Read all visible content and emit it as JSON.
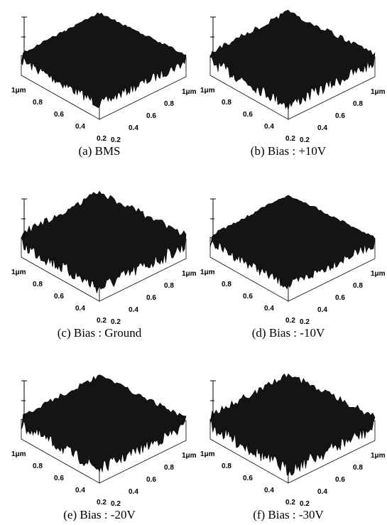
{
  "panels": [
    {
      "caption": "(a) BMS",
      "left_axis": [
        "1μm",
        "0.8",
        "0.6",
        "0.4",
        "0.2"
      ],
      "right_axis": [
        "0.2",
        "0.4",
        "0.6",
        "0.8",
        "1μm"
      ]
    },
    {
      "caption": "(b) Bias : +10V",
      "left_axis": [
        "1μm",
        "0.8",
        "0.6",
        "0.4",
        "0.2"
      ],
      "right_axis": [
        "0.2",
        "0.4",
        "0.6",
        "0.8",
        "1μm"
      ]
    },
    {
      "caption": "(c) Bias : Ground",
      "left_axis": [
        "1μm",
        "0.8",
        "0.6",
        "0.4",
        "0.2"
      ],
      "right_axis": [
        "0.2",
        "0.4",
        "0.6",
        "0.8",
        "1μm"
      ]
    },
    {
      "caption": "(d) Bias : -10V",
      "left_axis": [
        "1μm",
        "0.8",
        "0.6",
        "0.4",
        "0.2"
      ],
      "right_axis": [
        "0.2",
        "0.4",
        "0.6",
        "0.8",
        "1μm"
      ]
    },
    {
      "caption": "(e) Bias : -20V",
      "left_axis": [
        "1μm",
        "0.8",
        "0.6",
        "0.4",
        "0.2"
      ],
      "right_axis": [
        "0.2",
        "0.4",
        "0.6",
        "0.8",
        "1μm"
      ]
    },
    {
      "caption": "(f) Bias : -30V",
      "left_axis": [
        "1μm",
        "0.8",
        "0.6",
        "0.4",
        "0.2"
      ],
      "right_axis": [
        "0.2",
        "0.4",
        "0.6",
        "0.8",
        "1μm"
      ]
    }
  ]
}
